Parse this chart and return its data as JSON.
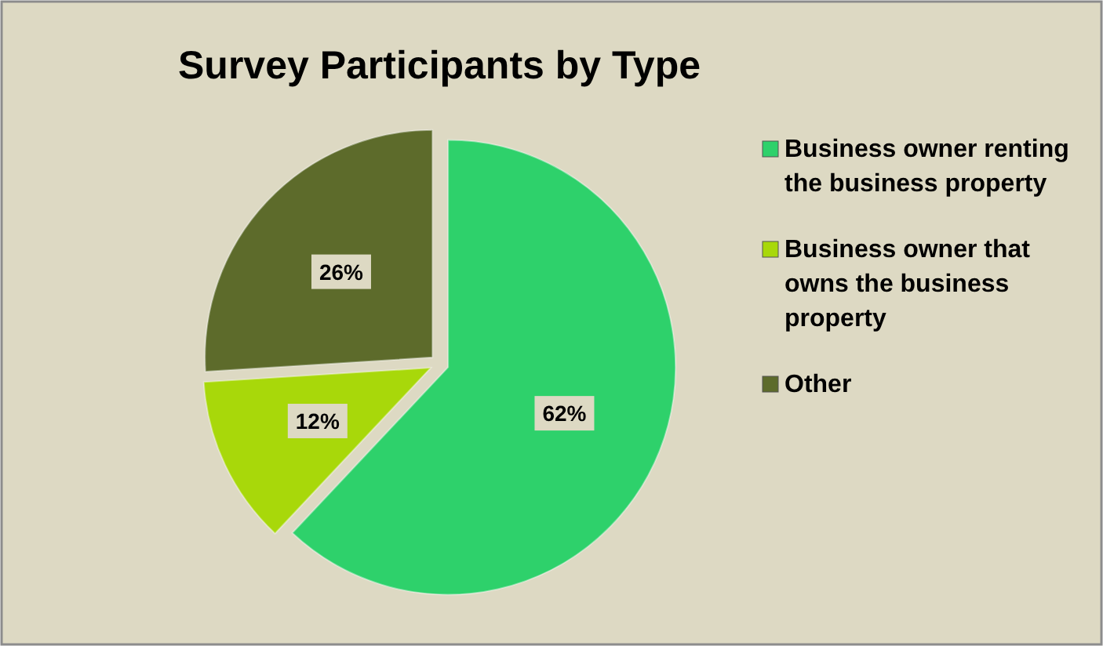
{
  "chart_data": {
    "type": "pie",
    "title": "Survey Participants by Type",
    "categories": [
      "Business owner renting the business property",
      "Business owner that owns the business property",
      "Other"
    ],
    "values": [
      62,
      12,
      26
    ],
    "colors": [
      "#2ed16b",
      "#a8d80a",
      "#5d6b2b"
    ],
    "value_labels": [
      "62%",
      "12%",
      "26%"
    ],
    "legend": "right"
  }
}
